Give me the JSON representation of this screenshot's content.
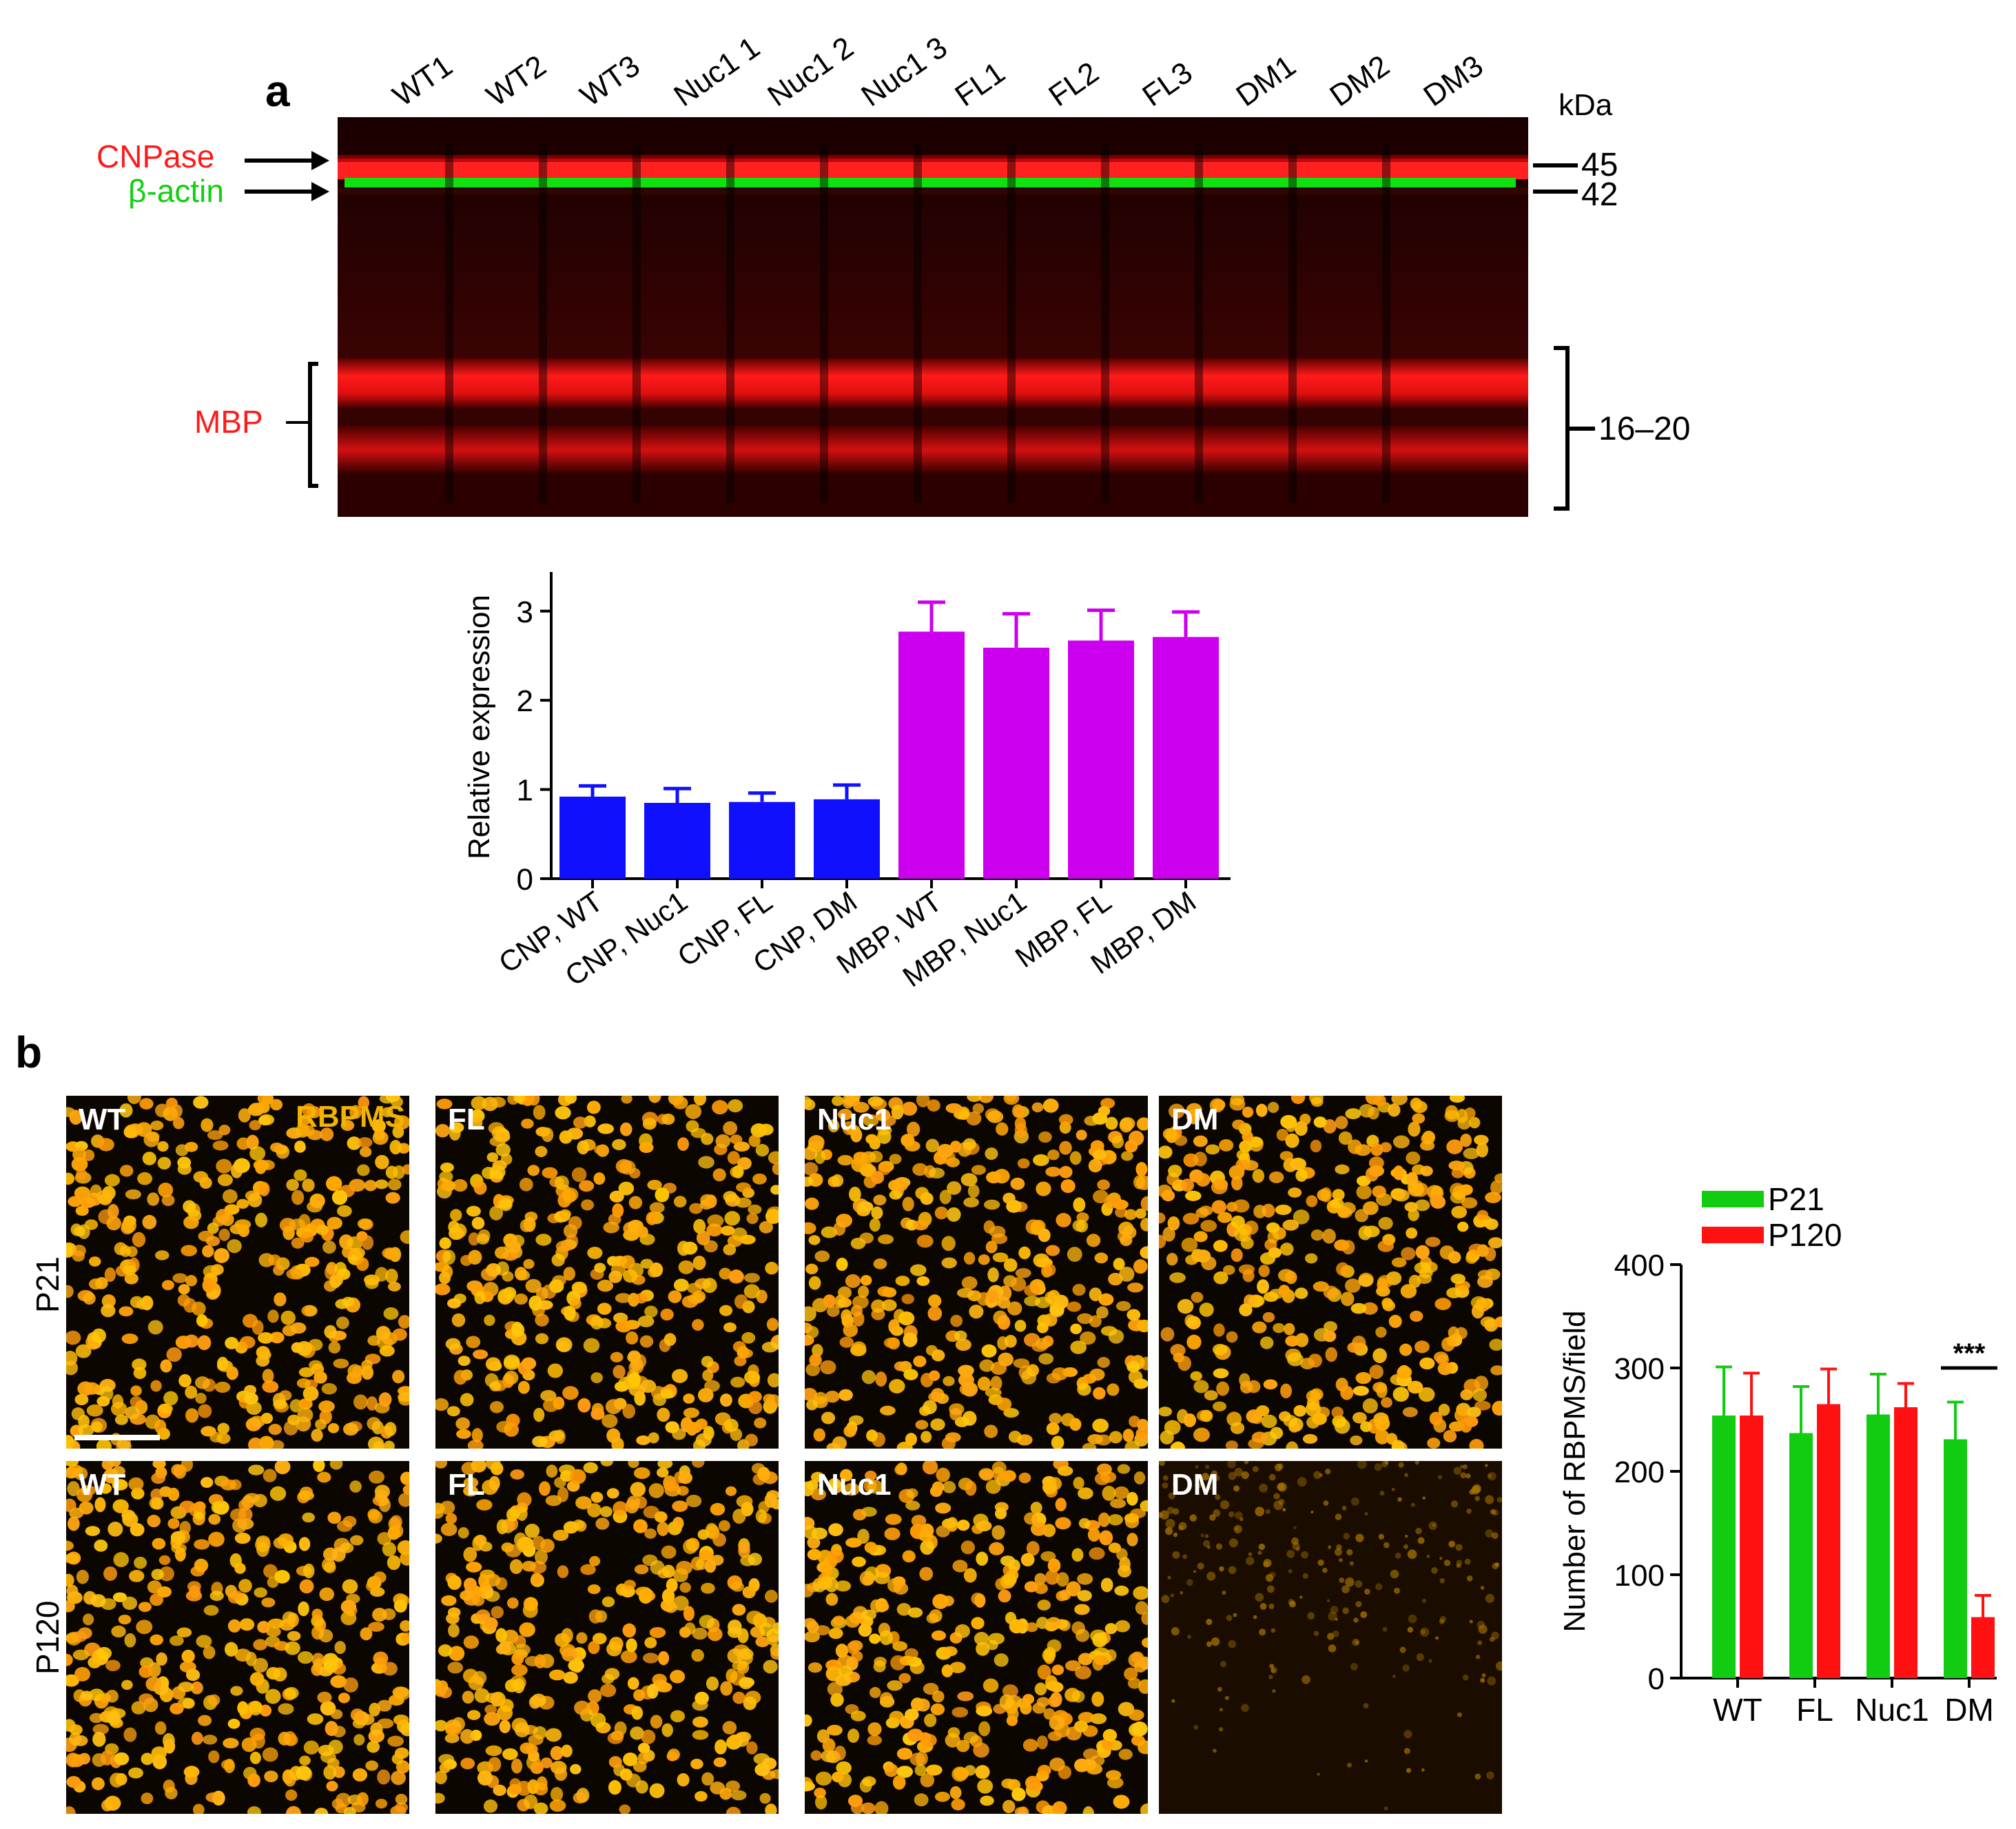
{
  "panel_a": {
    "letter": "a",
    "lanes": [
      "WT1",
      "WT2",
      "WT3",
      "Nuc1 1",
      "Nuc1 2",
      "Nuc1 3",
      "FL1",
      "FL2",
      "FL3",
      "DM1",
      "DM2",
      "DM3"
    ],
    "kda_label": "kDa",
    "markers": [
      "45",
      "42",
      "16–20"
    ],
    "bands": {
      "cnpase": "CNPase",
      "actin": "β-actin",
      "mbp": "MBP"
    },
    "colors": {
      "cnpase": "#ff1a1a",
      "actin": "#00dd00",
      "mbp": "#ff1a1a"
    }
  },
  "panel_b": {
    "letter": "b",
    "stain_label": "RBPMS",
    "columns": [
      "WT",
      "FL",
      "Nuc1",
      "DM"
    ],
    "rows": [
      "P21",
      "P120"
    ]
  },
  "chart_data": [
    {
      "type": "bar",
      "title": "",
      "xlabel": "",
      "ylabel": "Relative expression",
      "ylim": [
        0,
        3.4
      ],
      "yticks": [
        0,
        1,
        2,
        3
      ],
      "categories": [
        "CNP, WT",
        "CNP, Nuc1",
        "CNP, FL",
        "CNP, DM",
        "MBP, WT",
        "MBP, Nuc1",
        "MBP, FL",
        "MBP, DM"
      ],
      "values": [
        0.92,
        0.85,
        0.86,
        0.89,
        2.77,
        2.59,
        2.67,
        2.71
      ],
      "errors": [
        0.12,
        0.16,
        0.1,
        0.16,
        0.33,
        0.38,
        0.34,
        0.28
      ],
      "colors": [
        "#1010ff",
        "#1010ff",
        "#1010ff",
        "#1010ff",
        "#cc00ee",
        "#cc00ee",
        "#cc00ee",
        "#cc00ee"
      ]
    },
    {
      "type": "bar",
      "title": "",
      "xlabel": "",
      "ylabel": "Number of RBPMS/field",
      "ylim": [
        0,
        400
      ],
      "yticks": [
        0,
        100,
        200,
        300,
        400
      ],
      "categories": [
        "WT",
        "FL",
        "Nuc1",
        "DM"
      ],
      "series": [
        {
          "name": "P21",
          "color": "#11cc11",
          "values": [
            254,
            237,
            255,
            231
          ],
          "errors": [
            47,
            45,
            39,
            36
          ]
        },
        {
          "name": "P120",
          "color": "#ff1111",
          "values": [
            254,
            265,
            262,
            59
          ],
          "errors": [
            41,
            34,
            23,
            21
          ]
        }
      ],
      "annotation": "***",
      "legend_position": "top-left"
    }
  ]
}
